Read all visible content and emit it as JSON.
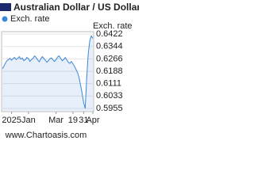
{
  "chart_data": {
    "type": "line",
    "title": "Australian Dollar / US Dollar (",
    "y_axis_label": "Exch. rate",
    "footer": "www.Chartoasis.com",
    "categories": [
      null,
      null,
      null,
      null,
      null,
      null,
      "2025",
      null,
      null,
      null,
      null,
      null,
      null,
      null,
      null,
      null,
      null,
      "Jan",
      null,
      null,
      null,
      null,
      null,
      null,
      null,
      null,
      null,
      null,
      null,
      null,
      null,
      null,
      null,
      null,
      null,
      "Mar",
      null,
      null,
      null,
      null,
      null,
      null,
      null,
      null,
      null,
      null,
      "19",
      null,
      null,
      null,
      null,
      null,
      null,
      "31",
      null,
      null,
      null,
      null,
      null,
      "Apr"
    ],
    "series": [
      {
        "name": "Exch. rate",
        "color": "#3a87d6",
        "values": [
          0.6205,
          0.622,
          0.624,
          0.6255,
          0.6262,
          0.627,
          0.6258,
          0.6268,
          0.6275,
          0.6262,
          0.627,
          0.628,
          0.6265,
          0.6272,
          0.6255,
          0.6262,
          0.6275,
          0.6268,
          0.625,
          0.6262,
          0.627,
          0.6285,
          0.6275,
          0.626,
          0.6248,
          0.6265,
          0.628,
          0.627,
          0.6258,
          0.6245,
          0.6255,
          0.6268,
          0.6272,
          0.626,
          0.625,
          0.6262,
          0.6278,
          0.6285,
          0.627,
          0.6255,
          0.6262,
          0.6275,
          0.626,
          0.6245,
          0.6238,
          0.625,
          0.6235,
          0.622,
          0.62,
          0.618,
          0.615,
          0.61,
          0.605,
          0.599,
          0.5955,
          0.615,
          0.63,
          0.638,
          0.641,
          0.6395
        ]
      }
    ],
    "ylim": [
      0.5955,
      0.6422
    ],
    "yticks": [
      0.6422,
      0.6344,
      0.6266,
      0.6188,
      0.6111,
      0.6033,
      0.5955
    ],
    "grid": true
  }
}
